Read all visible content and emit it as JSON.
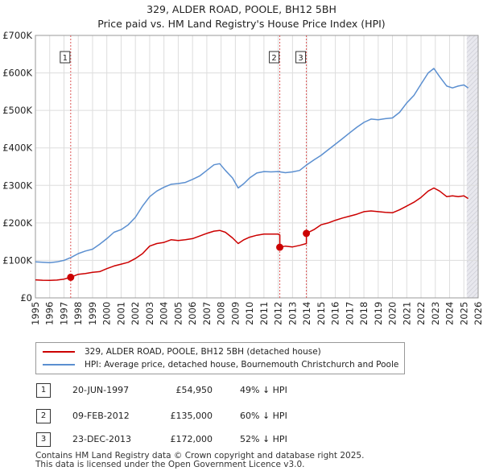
{
  "chart_data": {
    "type": "line",
    "title": "329, ALDER ROAD, POOLE, BH12 5BH",
    "subtitle": "Price paid vs. HM Land Registry's House Price Index (HPI)",
    "xlim": [
      1995,
      2026
    ],
    "ylim": [
      0,
      700000
    ],
    "x_ticks": [
      "1995",
      "1996",
      "1997",
      "1998",
      "1999",
      "2000",
      "2001",
      "2002",
      "2003",
      "2004",
      "2005",
      "2006",
      "2007",
      "2008",
      "2009",
      "2010",
      "2011",
      "2012",
      "2013",
      "2014",
      "2015",
      "2016",
      "2017",
      "2018",
      "2019",
      "2020",
      "2021",
      "2022",
      "2023",
      "2024",
      "2025",
      "2026"
    ],
    "y_ticks": [
      {
        "value": 0,
        "label": "£0"
      },
      {
        "value": 100000,
        "label": "£100K"
      },
      {
        "value": 200000,
        "label": "£200K"
      },
      {
        "value": 300000,
        "label": "£300K"
      },
      {
        "value": 400000,
        "label": "£400K"
      },
      {
        "value": 500000,
        "label": "£500K"
      },
      {
        "value": 600000,
        "label": "£600K"
      },
      {
        "value": 700000,
        "label": "£700K"
      }
    ],
    "grid": true,
    "series": [
      {
        "name": "329, ALDER ROAD, POOLE, BH12 5BH (detached house)",
        "color": "#cc0000",
        "x": [
          1995.0,
          1995.5,
          1996.0,
          1996.5,
          1997.0,
          1997.47,
          1997.8,
          1998.0,
          1998.5,
          1999.0,
          1999.5,
          2000.0,
          2000.5,
          2001.0,
          2001.5,
          2002.0,
          2002.5,
          2003.0,
          2003.5,
          2004.0,
          2004.5,
          2005.0,
          2005.5,
          2006.0,
          2006.5,
          2007.0,
          2007.5,
          2007.9,
          2008.3,
          2008.8,
          2009.2,
          2009.6,
          2010.0,
          2010.5,
          2011.0,
          2011.5,
          2012.0,
          2012.11,
          2012.11,
          2012.5,
          2013.0,
          2013.5,
          2013.97,
          2013.97,
          2014.5,
          2015.0,
          2015.5,
          2016.0,
          2016.5,
          2017.0,
          2017.5,
          2018.0,
          2018.5,
          2019.0,
          2019.5,
          2020.0,
          2020.5,
          2021.0,
          2021.5,
          2022.0,
          2022.5,
          2022.9,
          2023.3,
          2023.8,
          2024.2,
          2024.6,
          2025.0,
          2025.3
        ],
        "values": [
          48000,
          47000,
          46500,
          47500,
          50000,
          54950,
          60000,
          63000,
          65000,
          68000,
          70000,
          78000,
          85000,
          90000,
          95000,
          105000,
          118000,
          138000,
          145000,
          148000,
          155000,
          153000,
          155000,
          158000,
          165000,
          172000,
          178000,
          180000,
          175000,
          160000,
          145000,
          155000,
          162000,
          167000,
          170000,
          170000,
          170000,
          168000,
          135000,
          138000,
          136000,
          140000,
          145000,
          172000,
          182000,
          195000,
          200000,
          207000,
          213000,
          218000,
          223000,
          230000,
          232000,
          230000,
          228000,
          227000,
          235000,
          245000,
          255000,
          268000,
          285000,
          293000,
          285000,
          270000,
          272000,
          270000,
          272000,
          265000
        ]
      },
      {
        "name": "HPI: Average price, detached house, Bournemouth Christchurch and Poole",
        "color": "#5b8fd0",
        "x": [
          1995.0,
          1995.5,
          1996.0,
          1996.5,
          1997.0,
          1997.5,
          1998.0,
          1998.5,
          1999.0,
          1999.5,
          2000.0,
          2000.5,
          2001.0,
          2001.5,
          2002.0,
          2002.5,
          2003.0,
          2003.5,
          2004.0,
          2004.5,
          2005.0,
          2005.5,
          2006.0,
          2006.5,
          2007.0,
          2007.5,
          2007.9,
          2008.3,
          2008.8,
          2009.2,
          2009.6,
          2010.0,
          2010.5,
          2011.0,
          2011.5,
          2012.0,
          2012.5,
          2013.0,
          2013.5,
          2014.0,
          2014.5,
          2015.0,
          2015.5,
          2016.0,
          2016.5,
          2017.0,
          2017.5,
          2018.0,
          2018.5,
          2019.0,
          2019.5,
          2020.0,
          2020.5,
          2021.0,
          2021.5,
          2022.0,
          2022.5,
          2022.9,
          2023.3,
          2023.8,
          2024.2,
          2024.6,
          2025.0,
          2025.3
        ],
        "values": [
          96000,
          95000,
          94000,
          96000,
          100000,
          108000,
          118000,
          125000,
          130000,
          143000,
          158000,
          175000,
          182000,
          195000,
          215000,
          245000,
          270000,
          285000,
          295000,
          303000,
          305000,
          308000,
          316000,
          325000,
          340000,
          355000,
          358000,
          340000,
          320000,
          293000,
          305000,
          320000,
          333000,
          337000,
          336000,
          337000,
          334000,
          336000,
          340000,
          355000,
          368000,
          380000,
          395000,
          410000,
          425000,
          440000,
          455000,
          468000,
          477000,
          475000,
          478000,
          480000,
          495000,
          520000,
          540000,
          570000,
          600000,
          612000,
          590000,
          565000,
          560000,
          565000,
          568000,
          560000
        ]
      }
    ],
    "annotations": [
      {
        "label": "1",
        "x": 1997.47,
        "value": 54950
      },
      {
        "label": "2",
        "x": 2012.11,
        "value": 135000
      },
      {
        "label": "3",
        "x": 2013.97,
        "value": 172000
      }
    ],
    "future_shade_from": 2025.2
  },
  "legend": {
    "items": [
      {
        "label": "329, ALDER ROAD, POOLE, BH12 5BH (detached house)",
        "color": "#cc0000"
      },
      {
        "label": "HPI: Average price, detached house, Bournemouth Christchurch and Poole",
        "color": "#5b8fd0"
      }
    ]
  },
  "sales": [
    {
      "num": "1",
      "date": "20-JUN-1997",
      "price": "£54,950",
      "hpi": "49% ↓ HPI"
    },
    {
      "num": "2",
      "date": "09-FEB-2012",
      "price": "£135,000",
      "hpi": "60% ↓ HPI"
    },
    {
      "num": "3",
      "date": "23-DEC-2013",
      "price": "£172,000",
      "hpi": "52% ↓ HPI"
    }
  ],
  "footer": {
    "line1": "Contains HM Land Registry data © Crown copyright and database right 2025.",
    "line2": "This data is licensed under the Open Government Licence v3.0."
  }
}
